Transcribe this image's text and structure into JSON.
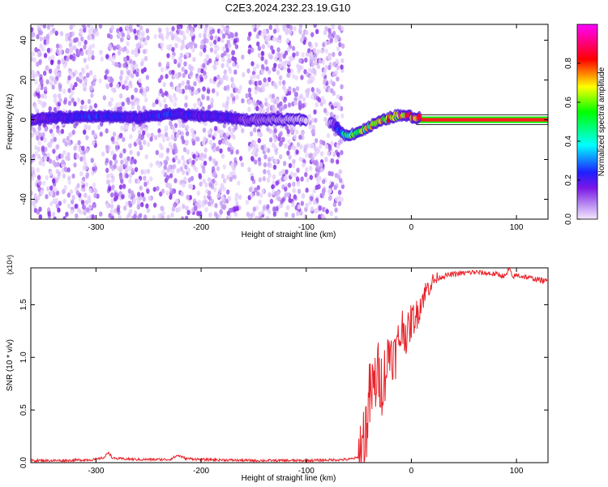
{
  "title": "C2E3.2024.232.23.19.G10",
  "chart_data": [
    {
      "type": "heatmap",
      "xlabel": "Height of straight line (km)",
      "ylabel": "Frequency (Hz)",
      "xlim": [
        -362,
        130
      ],
      "ylim": [
        -50,
        48
      ],
      "xticks": [
        -300,
        -200,
        -100,
        0,
        100
      ],
      "yticks": [
        -40,
        -20,
        0,
        20,
        40
      ],
      "xtick_labels": [
        "-300",
        "-200",
        "-100",
        "0",
        "100"
      ],
      "ytick_labels": [
        "-40",
        "-20",
        "0",
        "20",
        "40"
      ],
      "colorbar": {
        "label": "Normalized spectral amplitude",
        "range": [
          0,
          1
        ],
        "ticks": [
          0.0,
          0.2,
          0.4,
          0.6,
          0.8
        ],
        "tick_labels": [
          "0.0",
          "0.2",
          "0.4",
          "0.6",
          "0.8"
        ],
        "colors": [
          "#f4e8ff",
          "#b585f0",
          "#7a17e6",
          "#1f1fff",
          "#00ffff",
          "#00ff00",
          "#ffff00",
          "#ff0000",
          "#ff00ff"
        ]
      },
      "noise_extent_x": [
        -362,
        -65
      ],
      "gap_regions_x": [
        [
          -300,
          -290
        ],
        [
          -250,
          -240
        ],
        [
          -165,
          -155
        ]
      ],
      "signal_track": {
        "x": [
          -362,
          -340,
          -300,
          -260,
          -230,
          -200,
          -170,
          -160,
          -80,
          -68,
          -64,
          -55,
          -45,
          -35,
          -25,
          -15,
          -5,
          5,
          20,
          60,
          130
        ],
        "y": [
          0,
          1,
          2,
          1,
          3,
          2,
          1,
          0,
          0,
          -5,
          -8,
          -7,
          -5,
          -2,
          0,
          2,
          2,
          1,
          0,
          0,
          0
        ],
        "amplitude": [
          0.25,
          0.3,
          0.35,
          0.3,
          0.35,
          0.3,
          0.3,
          0.2,
          0.0,
          0.4,
          0.55,
          0.6,
          0.65,
          0.7,
          0.75,
          0.8,
          0.85,
          0.9,
          0.92,
          0.95,
          0.97
        ]
      }
    },
    {
      "type": "line",
      "xlabel": "Height of straight line (km)",
      "ylabel": "SNR (10 * v/v)",
      "y_multiplier_label": "(x10⁴)",
      "xlim": [
        -362,
        130
      ],
      "ylim": [
        0,
        1.85
      ],
      "xticks": [
        -300,
        -200,
        -100,
        0,
        100
      ],
      "yticks": [
        0.0,
        0.5,
        1.0,
        1.5
      ],
      "xtick_labels": [
        "-300",
        "-200",
        "-100",
        "0",
        "100"
      ],
      "ytick_labels": [
        "0.0",
        "0.5",
        "1.0",
        "1.5"
      ],
      "series": [
        {
          "color": "#e8232a",
          "x": [
            -362,
            -330,
            -300,
            -292,
            -288,
            -284,
            -260,
            -230,
            -222,
            -215,
            -200,
            -150,
            -100,
            -60,
            -50,
            -44,
            -40,
            -36,
            -32,
            -28,
            -24,
            -20,
            -16,
            -12,
            -8,
            -4,
            0,
            5,
            10,
            15,
            20,
            25,
            30,
            40,
            50,
            60,
            70,
            80,
            90,
            93,
            96,
            100,
            110,
            120,
            130
          ],
          "y": [
            0.02,
            0.02,
            0.03,
            0.05,
            0.1,
            0.04,
            0.03,
            0.03,
            0.07,
            0.04,
            0.03,
            0.02,
            0.02,
            0.03,
            0.05,
            0.25,
            0.6,
            0.7,
            0.85,
            0.75,
            0.9,
            1.1,
            1.0,
            1.15,
            1.3,
            1.2,
            1.35,
            1.4,
            1.55,
            1.65,
            1.72,
            1.75,
            1.77,
            1.79,
            1.8,
            1.81,
            1.8,
            1.79,
            1.77,
            1.85,
            1.76,
            1.78,
            1.76,
            1.74,
            1.72
          ]
        }
      ]
    }
  ]
}
